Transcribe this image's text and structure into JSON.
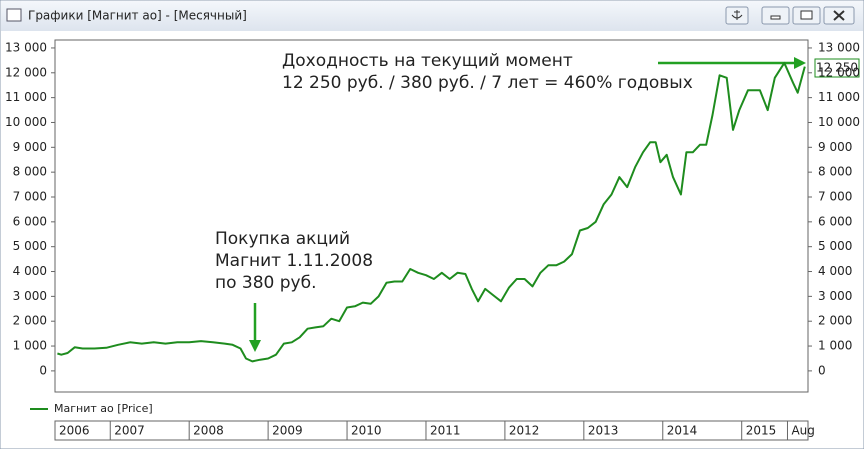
{
  "window": {
    "title": "Графики [Магнит ао] - [Месячный]"
  },
  "chart_data": {
    "type": "line",
    "annotations": [
      "Доходность на текущий момент",
      "12 250 руб. / 380 руб. / 7 лет = 460% годовых",
      "Покупка акций",
      "Магнит 1.11.2008",
      "по 380 руб."
    ],
    "last_value_label": "12 250",
    "x": [
      2006.33,
      2006.38,
      2006.46,
      2006.55,
      2006.65,
      2006.8,
      2006.95,
      2007.1,
      2007.25,
      2007.4,
      2007.55,
      2007.7,
      2007.85,
      2008.0,
      2008.15,
      2008.3,
      2008.45,
      2008.55,
      2008.65,
      2008.72,
      2008.8,
      2008.9,
      2009.0,
      2009.1,
      2009.2,
      2009.3,
      2009.4,
      2009.5,
      2009.6,
      2009.7,
      2009.8,
      2009.9,
      2010.0,
      2010.1,
      2010.2,
      2010.3,
      2010.4,
      2010.5,
      2010.6,
      2010.7,
      2010.8,
      2010.9,
      2011.0,
      2011.1,
      2011.2,
      2011.3,
      2011.4,
      2011.5,
      2011.58,
      2011.66,
      2011.75,
      2011.85,
      2011.95,
      2012.05,
      2012.15,
      2012.25,
      2012.35,
      2012.45,
      2012.55,
      2012.65,
      2012.75,
      2012.85,
      2012.95,
      2013.05,
      2013.15,
      2013.25,
      2013.35,
      2013.45,
      2013.55,
      2013.65,
      2013.75,
      2013.84,
      2013.91,
      2013.97,
      2014.05,
      2014.13,
      2014.23,
      2014.3,
      2014.38,
      2014.47,
      2014.55,
      2014.63,
      2014.72,
      2014.81,
      2014.89,
      2014.97,
      2015.08,
      2015.23,
      2015.33,
      2015.42,
      2015.54,
      2015.65,
      2015.71,
      2015.8
    ],
    "series": [
      {
        "name": "Магнит ао [Price]",
        "color": "#1e8c1e",
        "values": [
          700,
          650,
          720,
          950,
          900,
          900,
          930,
          1050,
          1150,
          1100,
          1150,
          1100,
          1150,
          1150,
          1200,
          1150,
          1100,
          1050,
          900,
          500,
          380,
          450,
          500,
          650,
          1100,
          1150,
          1350,
          1700,
          1750,
          1800,
          2100,
          2000,
          2550,
          2600,
          2750,
          2700,
          3000,
          3550,
          3600,
          3600,
          4100,
          3950,
          3850,
          3700,
          3950,
          3700,
          3950,
          3900,
          3300,
          2800,
          3300,
          3050,
          2800,
          3350,
          3700,
          3700,
          3400,
          3950,
          4250,
          4250,
          4400,
          4700,
          5650,
          5750,
          6000,
          6700,
          7100,
          7800,
          7400,
          8200,
          8800,
          9200,
          9200,
          8400,
          8700,
          7800,
          7100,
          8800,
          8800,
          9100,
          9100,
          10300,
          11900,
          11800,
          9700,
          10500,
          11300,
          11300,
          10500,
          11800,
          12400,
          11600,
          11200,
          12250
        ]
      }
    ],
    "xlim": [
      2006.3,
      2015.84
    ],
    "xticks": [
      {
        "value": 2006.3,
        "label": "2006"
      },
      {
        "value": 2007,
        "label": "2007"
      },
      {
        "value": 2008,
        "label": "2008"
      },
      {
        "value": 2009,
        "label": "2009"
      },
      {
        "value": 2010,
        "label": "2010"
      },
      {
        "value": 2011,
        "label": "2011"
      },
      {
        "value": 2012,
        "label": "2012"
      },
      {
        "value": 2013,
        "label": "2013"
      },
      {
        "value": 2014,
        "label": "2014"
      },
      {
        "value": 2015,
        "label": "2015"
      },
      {
        "value": 2015.58,
        "label": "Aug"
      }
    ],
    "ylim": [
      -850,
      13320
    ],
    "yticks": [
      0,
      {
        "value": 1000,
        "label": "1 000"
      },
      {
        "value": 2000,
        "label": "2 000"
      },
      {
        "value": 3000,
        "label": "3 000"
      },
      {
        "value": 4000,
        "label": "4 000"
      },
      {
        "value": 5000,
        "label": "5 000"
      },
      {
        "value": 6000,
        "label": "6 000"
      },
      {
        "value": 7000,
        "label": "7 000"
      },
      {
        "value": 8000,
        "label": "8 000"
      },
      {
        "value": 9000,
        "label": "9 000"
      },
      {
        "value": 10000,
        "label": "10 000"
      },
      {
        "value": 11000,
        "label": "11 000"
      },
      {
        "value": 12000,
        "label": "12 000"
      },
      {
        "value": 13000,
        "label": "13 000"
      }
    ],
    "grid": false
  }
}
